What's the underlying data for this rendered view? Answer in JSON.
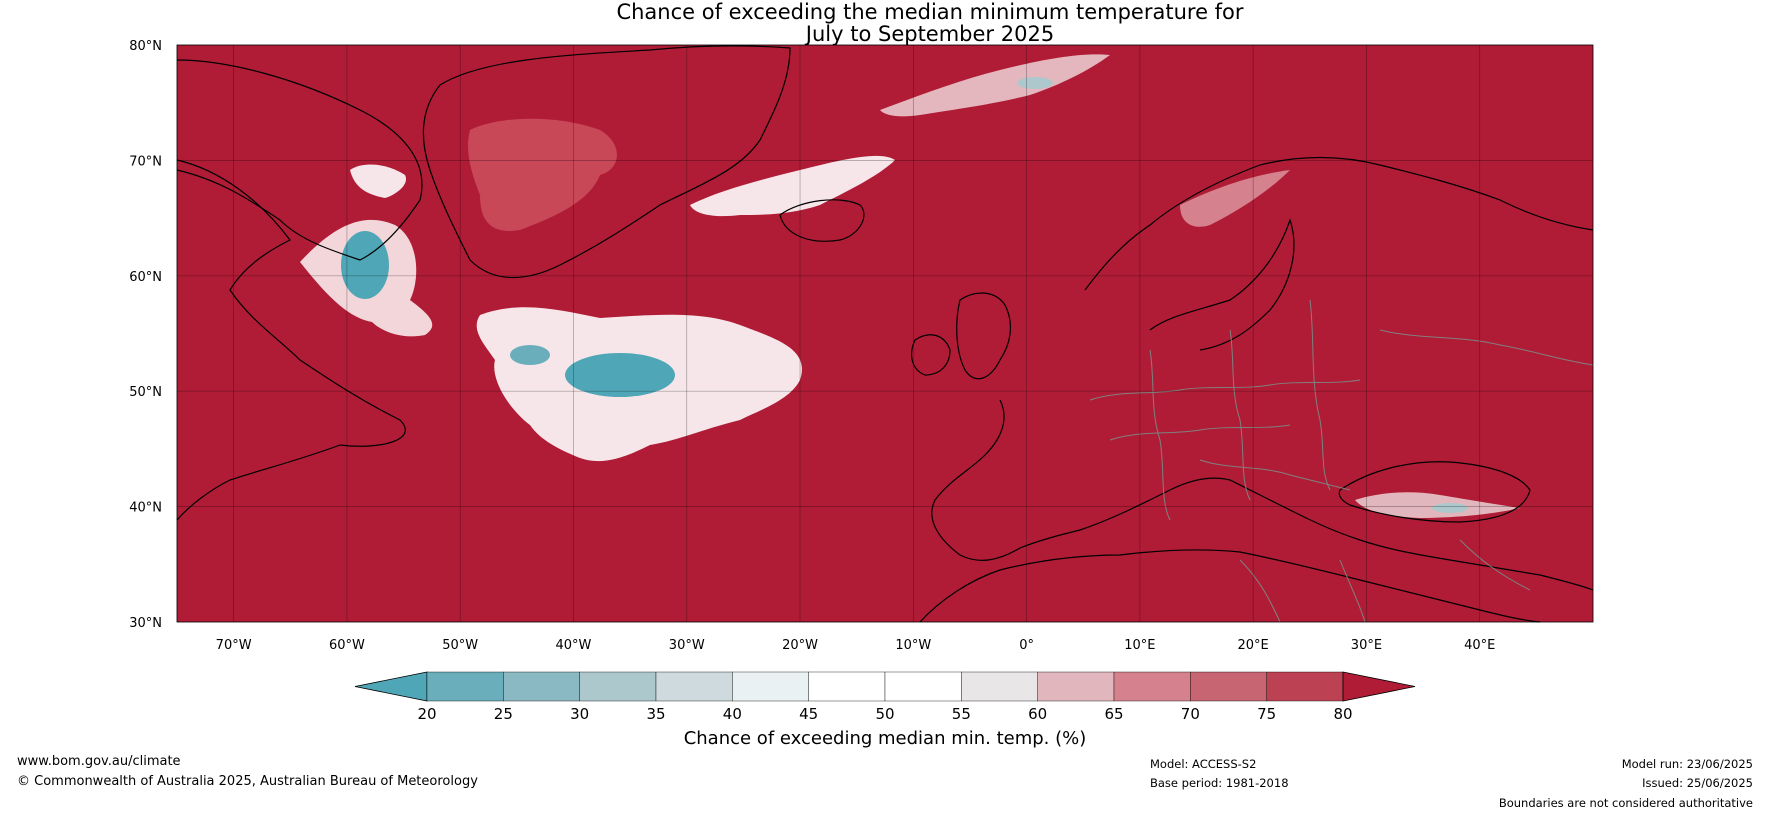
{
  "title": {
    "line1": "Chance of exceeding the median minimum temperature for",
    "line2": "July to September 2025"
  },
  "map": {
    "lat_ticks": [
      "80°N",
      "70°N",
      "60°N",
      "50°N",
      "40°N",
      "30°N"
    ],
    "lon_ticks": [
      "70°W",
      "60°W",
      "50°W",
      "40°W",
      "30°W",
      "20°W",
      "10°W",
      "0°",
      "10°E",
      "20°E",
      "30°E",
      "40°E"
    ],
    "background_color": "#b01c36",
    "coastline_color": "#000000",
    "border_color": "#808080"
  },
  "colorbar": {
    "ticks": [
      "20",
      "25",
      "30",
      "35",
      "40",
      "45",
      "50",
      "55",
      "60",
      "65",
      "70",
      "75",
      "80"
    ],
    "colors": [
      "#4ea6b6",
      "#6aaebb",
      "#8bb9c3",
      "#adc8cc",
      "#cedadd",
      "#eaf1f2",
      "#ffffff",
      "#ffffff",
      "#e9e6e8",
      "#e2b6bd",
      "#d5828e",
      "#c86573",
      "#bc4153",
      "#b01c36"
    ],
    "low_color": "#4ea6b6",
    "high_color": "#b01c36",
    "label": "Chance of exceeding median min. temp. (%)"
  },
  "footer": {
    "url": "www.bom.gov.au/climate",
    "copyright": "© Commonwealth of Australia 2025, Australian Bureau of Meteorology",
    "model": "Model: ACCESS-S2",
    "base_period": "Base period: 1981-2018",
    "model_run": "Model run: 23/06/2025",
    "issued": "Issued: 25/06/2025",
    "disclaimer": "Boundaries are not considered authoritative"
  }
}
